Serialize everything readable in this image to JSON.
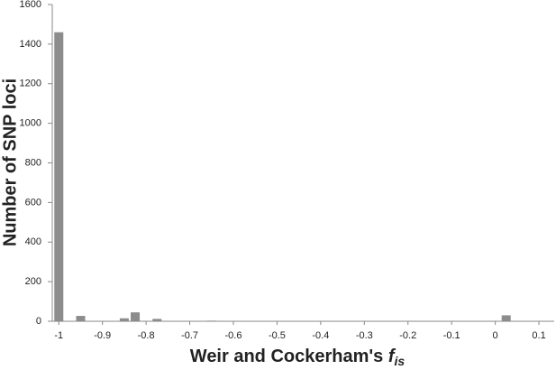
{
  "chart_data": {
    "type": "bar",
    "x": [
      -1,
      -0.95,
      -0.85,
      -0.825,
      -0.775,
      -0.65,
      0.025
    ],
    "values": [
      1460,
      27,
      15,
      45,
      12,
      3,
      30
    ],
    "color": "#8c8c8c",
    "xlim": [
      -1.015,
      0.135
    ],
    "xticks": [
      -1,
      -0.9,
      -0.8,
      -0.7,
      -0.6,
      -0.5,
      -0.4,
      -0.3,
      -0.2,
      -0.1,
      0,
      0.1
    ],
    "ylim": [
      0,
      1600
    ],
    "yticks": [
      0,
      200,
      400,
      600,
      800,
      1000,
      1200,
      1400,
      1600
    ],
    "xlabel": {
      "text": "Weir and Cockerham's ",
      "symbol": "f",
      "subscript": "is"
    },
    "ylabel": "Number of SNP loci",
    "grid": false
  }
}
